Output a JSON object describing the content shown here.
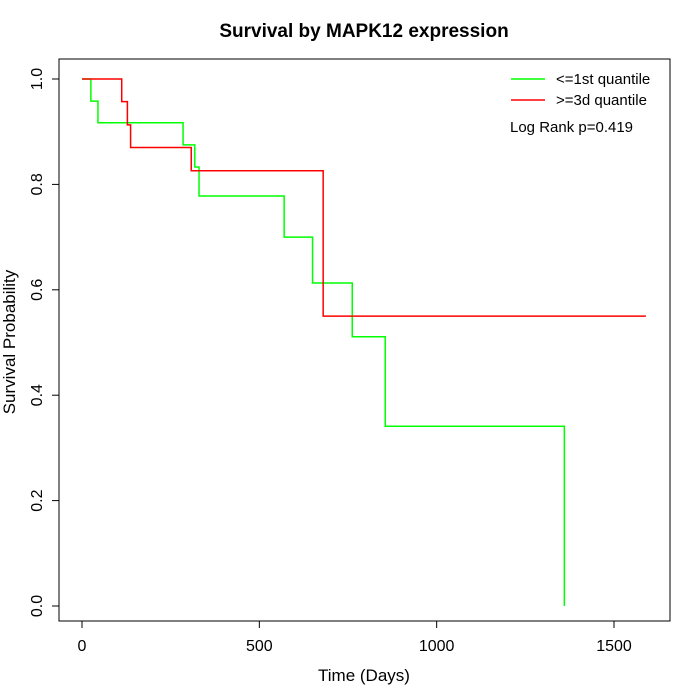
{
  "chart_data": {
    "type": "line",
    "subtype": "kaplan-meier step",
    "title": "Survival by MAPK12 expression",
    "xlabel": "Time (Days)",
    "ylabel": "Survival Probability",
    "xlim": [
      0,
      1600
    ],
    "ylim": [
      0,
      1.0
    ],
    "x_ticks": [
      0,
      500,
      1000,
      1500
    ],
    "y_ticks": [
      0.0,
      0.2,
      0.4,
      0.6,
      0.8,
      1.0
    ],
    "x_tick_labels": [
      "0",
      "500",
      "1000",
      "1500"
    ],
    "y_tick_labels": [
      "0.0",
      "0.2",
      "0.4",
      "0.6",
      "0.8",
      "1.0"
    ],
    "grid": false,
    "legend_position": "top-right",
    "annotation": "Log Rank p=0.419",
    "series": [
      {
        "name": "<=1st quantile",
        "color": "#00ff00",
        "steps": [
          [
            0,
            1.0
          ],
          [
            25,
            0.958
          ],
          [
            45,
            0.917
          ],
          [
            285,
            0.875
          ],
          [
            318,
            0.833
          ],
          [
            330,
            0.778
          ],
          [
            570,
            0.7
          ],
          [
            650,
            0.613
          ],
          [
            762,
            0.511
          ],
          [
            855,
            0.341
          ],
          [
            1360,
            0.0
          ]
        ],
        "end_x": 1360
      },
      {
        "name": ">=3d quantile",
        "color": "#ff0000",
        "steps": [
          [
            0,
            1.0
          ],
          [
            112,
            0.957
          ],
          [
            128,
            0.913
          ],
          [
            137,
            0.87
          ],
          [
            308,
            0.826
          ],
          [
            680,
            0.55
          ]
        ],
        "end_x": 1590
      }
    ]
  }
}
